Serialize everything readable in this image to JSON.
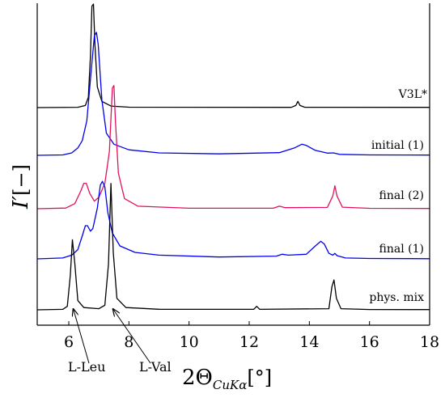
{
  "chart_data": {
    "type": "line",
    "xlabel": "2Θ",
    "xlabel_sub": "CuKα",
    "xlabel_unit": "[°]",
    "ylabel": "I′",
    "ylabel_unit": "[−]",
    "xlim": [
      4.95,
      18
    ],
    "xticks": [
      6,
      8,
      10,
      12,
      14,
      16,
      18
    ],
    "series": [
      {
        "name": "V3L*",
        "color": "#000000",
        "points": [
          [
            4.95,
            0
          ],
          [
            6.3,
            0.003
          ],
          [
            6.55,
            0.02
          ],
          [
            6.65,
            0.1
          ],
          [
            6.72,
            0.5
          ],
          [
            6.77,
            0.98
          ],
          [
            6.82,
            1.0
          ],
          [
            6.87,
            0.6
          ],
          [
            6.95,
            0.2
          ],
          [
            7.1,
            0.06
          ],
          [
            7.4,
            0.015
          ],
          [
            8,
            0.004
          ],
          [
            13.4,
            0.002
          ],
          [
            13.55,
            0.02
          ],
          [
            13.62,
            0.06
          ],
          [
            13.69,
            0.02
          ],
          [
            13.85,
            0.003
          ],
          [
            18,
            0.002
          ]
        ]
      },
      {
        "name": "initial (1)",
        "color": "#0000ee",
        "points": [
          [
            4.95,
            0
          ],
          [
            5.8,
            0.003
          ],
          [
            6.1,
            0.02
          ],
          [
            6.2,
            0.04
          ],
          [
            6.3,
            0.06
          ],
          [
            6.45,
            0.12
          ],
          [
            6.6,
            0.28
          ],
          [
            6.75,
            0.7
          ],
          [
            6.85,
            0.97
          ],
          [
            6.92,
            1.0
          ],
          [
            6.98,
            0.9
          ],
          [
            7.1,
            0.45
          ],
          [
            7.25,
            0.18
          ],
          [
            7.5,
            0.09
          ],
          [
            8,
            0.045
          ],
          [
            9,
            0.02
          ],
          [
            11,
            0.012
          ],
          [
            13,
            0.022
          ],
          [
            13.5,
            0.06
          ],
          [
            13.75,
            0.09
          ],
          [
            13.9,
            0.08
          ],
          [
            14.2,
            0.04
          ],
          [
            14.6,
            0.018
          ],
          [
            14.8,
            0.02
          ],
          [
            15,
            0.008
          ],
          [
            16,
            0.003
          ],
          [
            18,
            0.002
          ]
        ]
      },
      {
        "name": "final (2)",
        "color": "#e0115f",
        "points": [
          [
            4.95,
            0
          ],
          [
            5.9,
            0.005
          ],
          [
            6.2,
            0.04
          ],
          [
            6.4,
            0.14
          ],
          [
            6.5,
            0.2
          ],
          [
            6.58,
            0.2
          ],
          [
            6.7,
            0.12
          ],
          [
            6.85,
            0.06
          ],
          [
            7.0,
            0.09
          ],
          [
            7.2,
            0.2
          ],
          [
            7.35,
            0.45
          ],
          [
            7.45,
            0.95
          ],
          [
            7.5,
            0.97
          ],
          [
            7.55,
            0.7
          ],
          [
            7.65,
            0.28
          ],
          [
            7.85,
            0.08
          ],
          [
            8.3,
            0.02
          ],
          [
            10,
            0.004
          ],
          [
            12.8,
            0.004
          ],
          [
            13.0,
            0.02
          ],
          [
            13.2,
            0.008
          ],
          [
            14.6,
            0.01
          ],
          [
            14.78,
            0.1
          ],
          [
            14.85,
            0.18
          ],
          [
            14.92,
            0.1
          ],
          [
            15.1,
            0.012
          ],
          [
            16,
            0.003
          ],
          [
            18,
            0.002
          ]
        ]
      },
      {
        "name": "final (1)",
        "color": "#0000ee",
        "points": [
          [
            4.95,
            0
          ],
          [
            5.8,
            0.01
          ],
          [
            6.1,
            0.04
          ],
          [
            6.3,
            0.1
          ],
          [
            6.45,
            0.25
          ],
          [
            6.55,
            0.36
          ],
          [
            6.62,
            0.36
          ],
          [
            6.72,
            0.3
          ],
          [
            6.8,
            0.33
          ],
          [
            6.95,
            0.55
          ],
          [
            7.05,
            0.8
          ],
          [
            7.12,
            0.84
          ],
          [
            7.2,
            0.78
          ],
          [
            7.3,
            0.5
          ],
          [
            7.45,
            0.28
          ],
          [
            7.7,
            0.14
          ],
          [
            8.2,
            0.07
          ],
          [
            9,
            0.04
          ],
          [
            11,
            0.02
          ],
          [
            12.9,
            0.03
          ],
          [
            13.1,
            0.05
          ],
          [
            13.3,
            0.04
          ],
          [
            13.9,
            0.05
          ],
          [
            14.2,
            0.14
          ],
          [
            14.38,
            0.19
          ],
          [
            14.5,
            0.16
          ],
          [
            14.65,
            0.06
          ],
          [
            14.78,
            0.04
          ],
          [
            14.85,
            0.06
          ],
          [
            14.92,
            0.035
          ],
          [
            15.2,
            0.01
          ],
          [
            16,
            0.004
          ],
          [
            18,
            0.002
          ]
        ]
      },
      {
        "name": "phys. mix",
        "color": "#000000",
        "points": [
          [
            4.95,
            0
          ],
          [
            5.8,
            0.004
          ],
          [
            5.95,
            0.03
          ],
          [
            6.05,
            0.3
          ],
          [
            6.12,
            0.61
          ],
          [
            6.2,
            0.4
          ],
          [
            6.3,
            0.08
          ],
          [
            6.5,
            0.02
          ],
          [
            7.0,
            0.01
          ],
          [
            7.2,
            0.04
          ],
          [
            7.32,
            0.4
          ],
          [
            7.4,
            1.1
          ],
          [
            7.48,
            0.5
          ],
          [
            7.6,
            0.1
          ],
          [
            7.9,
            0.02
          ],
          [
            9,
            0.005
          ],
          [
            12.15,
            0.004
          ],
          [
            12.25,
            0.03
          ],
          [
            12.35,
            0.004
          ],
          [
            14.65,
            0.01
          ],
          [
            14.75,
            0.2
          ],
          [
            14.82,
            0.26
          ],
          [
            14.9,
            0.1
          ],
          [
            15.05,
            0.01
          ],
          [
            16,
            0.003
          ],
          [
            18,
            0.002
          ]
        ]
      }
    ],
    "annotations": [
      {
        "text": "L-Leu",
        "x": 6.15
      },
      {
        "text": "L-Val",
        "x": 7.47
      }
    ]
  }
}
